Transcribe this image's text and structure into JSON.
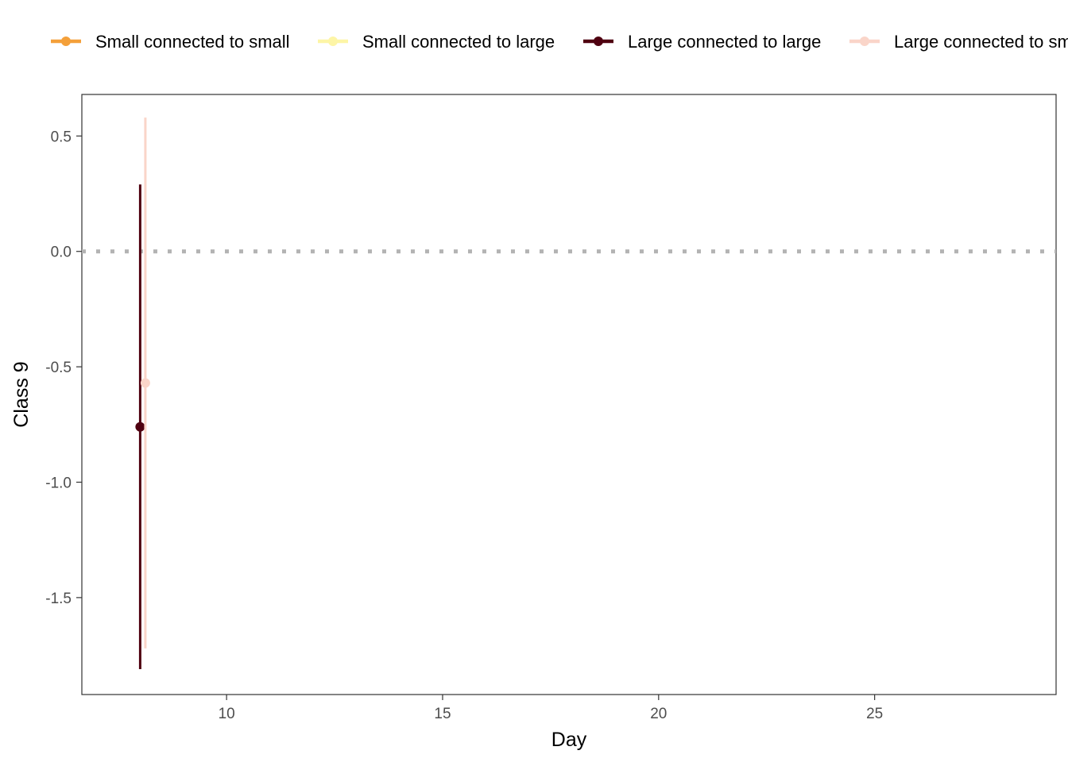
{
  "chart_data": {
    "type": "scatter",
    "title": "",
    "xlabel": "Day",
    "ylabel": "Class 9",
    "xlim": [
      6.65,
      29.2
    ],
    "ylim": [
      -1.92,
      0.68
    ],
    "x_ticks": [
      10,
      15,
      20,
      25
    ],
    "x_tick_labels": [
      "10",
      "15",
      "20",
      "25"
    ],
    "y_ticks": [
      0.5,
      0.0,
      -0.5,
      -1.0,
      -1.5
    ],
    "y_tick_labels": [
      "0.5",
      "0.0",
      "-0.5",
      "-1.0",
      "-1.5"
    ],
    "reference_line": {
      "y": 0,
      "style": "dotted",
      "color": "#b3b3b3"
    },
    "grid": false,
    "legend_position": "top",
    "series": [
      {
        "name": "Small connected to small",
        "color": "#f4a03a",
        "points": []
      },
      {
        "name": "Small connected to large",
        "color": "#fdf5a6",
        "points": []
      },
      {
        "name": "Large connected to large",
        "color": "#4f0010",
        "points": [
          {
            "x": 8,
            "y": -0.76,
            "ymin": -1.81,
            "ymax": 0.29
          }
        ]
      },
      {
        "name": "Large connected to small",
        "color": "#fad5c9",
        "points": [
          {
            "x": 8.12,
            "y": -0.57,
            "ymin": -1.72,
            "ymax": 0.58
          }
        ]
      }
    ]
  }
}
